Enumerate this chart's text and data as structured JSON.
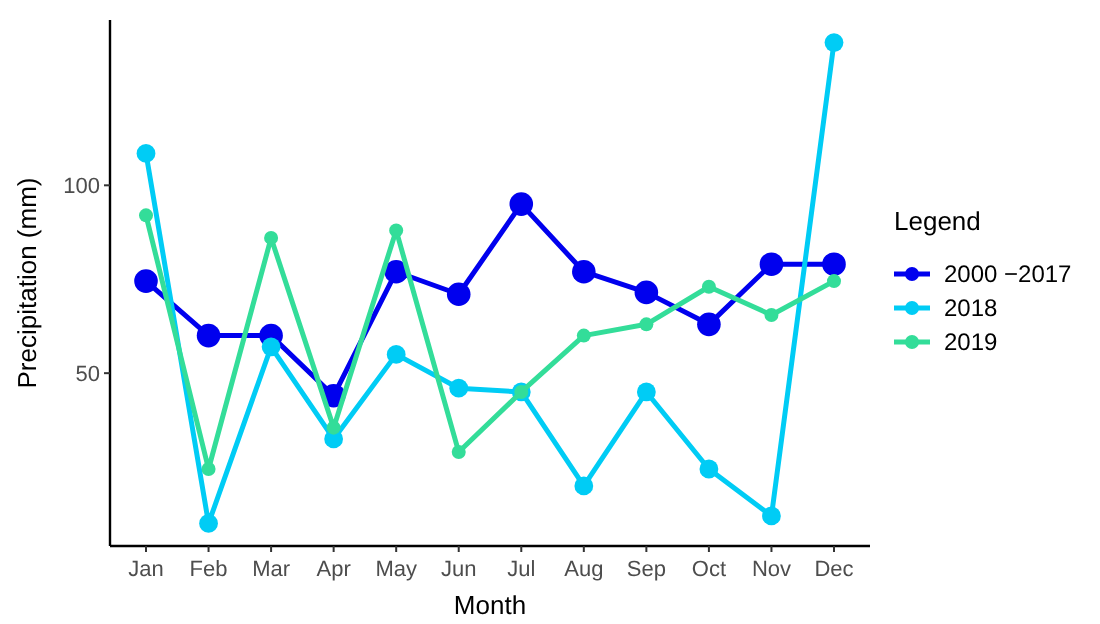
{
  "chart_data": {
    "type": "line",
    "xlabel": "Month",
    "ylabel": "Precipitation (mm)",
    "legend_title": "Legend",
    "legend": "right",
    "marker": "circle",
    "grid": false,
    "categories": [
      "Jan",
      "Feb",
      "Mar",
      "Apr",
      "May",
      "Jun",
      "Jul",
      "Aug",
      "Sep",
      "Oct",
      "Nov",
      "Dec"
    ],
    "ylim": [
      4,
      144
    ],
    "yticks": [
      50,
      100
    ],
    "series": [
      {
        "name": "2000 −2017",
        "color": "#0000ee",
        "values": [
          74.5,
          60,
          60,
          44,
          77,
          71,
          95,
          77,
          71.5,
          63,
          79,
          79
        ]
      },
      {
        "name": "2018",
        "color": "#00ccf5",
        "values": [
          108.5,
          10,
          57,
          32.5,
          55,
          46,
          45,
          20,
          45,
          24.5,
          12,
          138
        ]
      },
      {
        "name": "2019",
        "color": "#33dd99",
        "values": [
          92,
          24.5,
          86,
          35.5,
          88,
          29,
          45,
          60,
          63,
          73,
          65.5,
          74.5
        ]
      }
    ]
  }
}
